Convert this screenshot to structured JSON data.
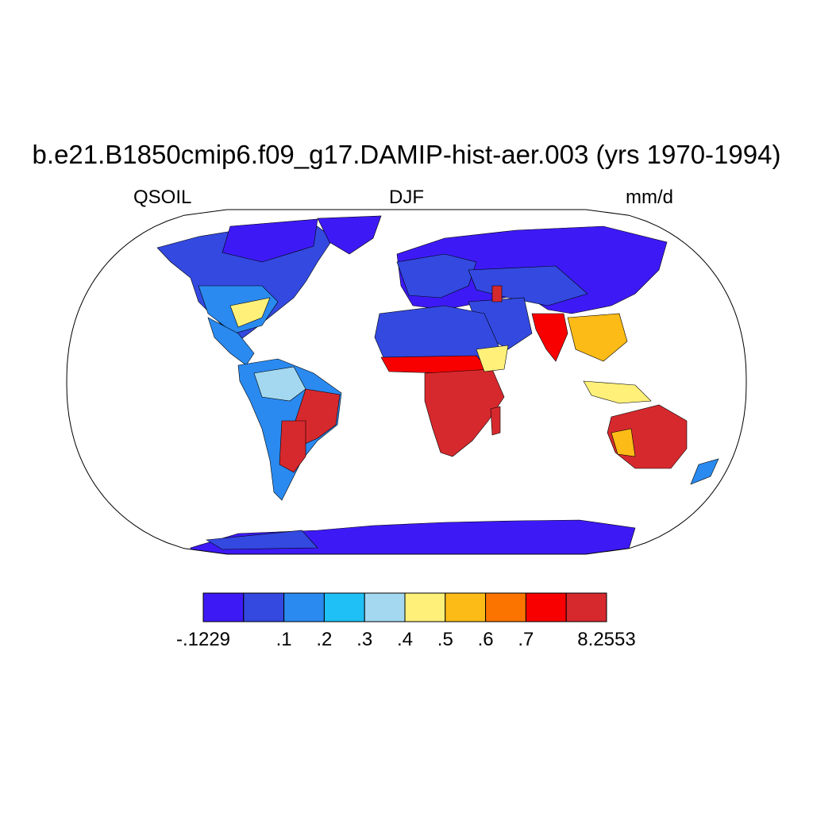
{
  "title": "b.e21.B1850cmip6.f09_g17.DAMIP-hist-aer.003 (yrs 1970-1994)",
  "subtitle_left": "QSOIL",
  "subtitle_center": "DJF",
  "subtitle_right": "mm/d",
  "map": {
    "projection": "Robinson",
    "variable": "QSOIL",
    "season": "DJF",
    "units": "mm/d",
    "ocean_color": "#ffffff",
    "coastline_color": "#000000"
  },
  "colorbar": {
    "colors": [
      "#3d1af5",
      "#3349e0",
      "#2a8af0",
      "#1fc0f5",
      "#a3d8f0",
      "#fff07a",
      "#fdbb17",
      "#fb7400",
      "#f80000",
      "#d6292e"
    ],
    "labels": [
      "-.1229",
      ".1",
      ".2",
      ".3",
      ".4",
      ".5",
      ".6",
      ".7",
      "8.2553"
    ],
    "label_edges": [
      0,
      2,
      3,
      4,
      5,
      6,
      7,
      8,
      10
    ]
  }
}
